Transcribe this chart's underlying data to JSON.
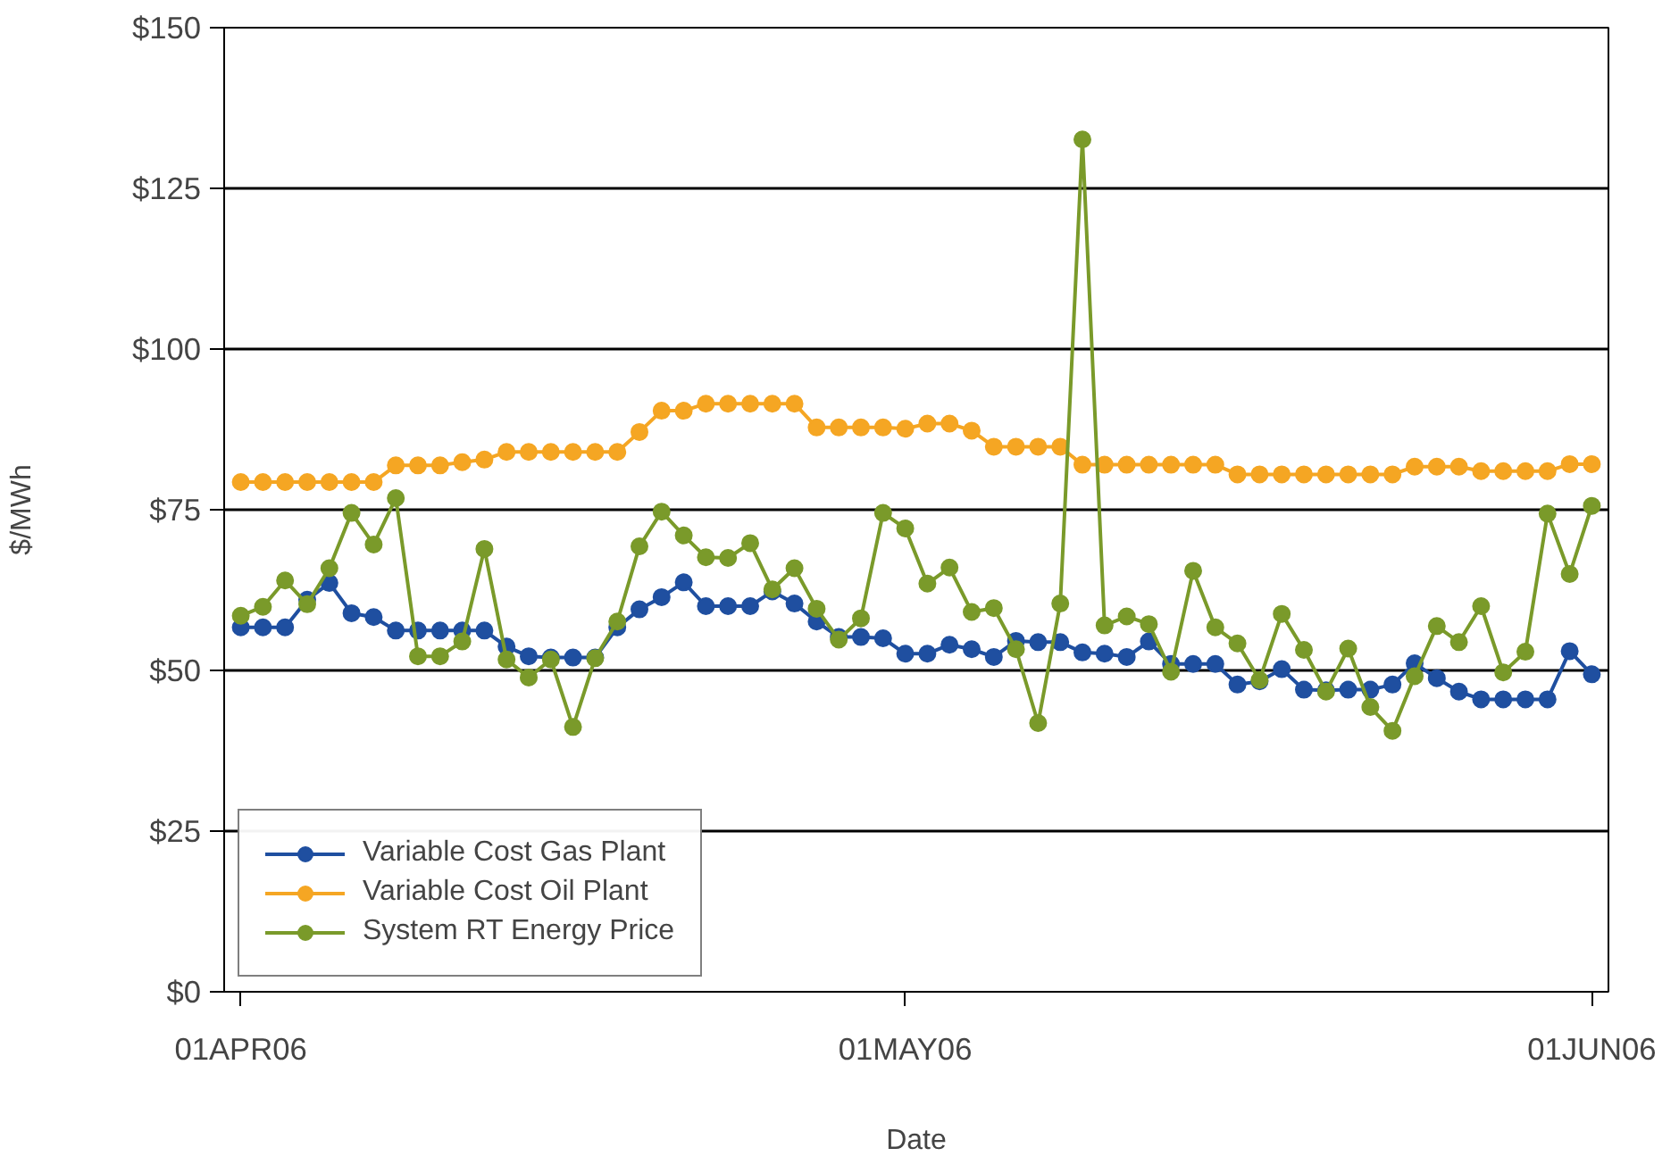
{
  "chart_data": {
    "type": "line",
    "xlabel": "Date",
    "ylabel": "$/MWh",
    "x": [
      "2006-04-01",
      "2006-04-02",
      "2006-04-03",
      "2006-04-04",
      "2006-04-05",
      "2006-04-06",
      "2006-04-07",
      "2006-04-08",
      "2006-04-09",
      "2006-04-10",
      "2006-04-11",
      "2006-04-12",
      "2006-04-13",
      "2006-04-14",
      "2006-04-15",
      "2006-04-16",
      "2006-04-17",
      "2006-04-18",
      "2006-04-19",
      "2006-04-20",
      "2006-04-21",
      "2006-04-22",
      "2006-04-23",
      "2006-04-24",
      "2006-04-25",
      "2006-04-26",
      "2006-04-27",
      "2006-04-28",
      "2006-04-29",
      "2006-04-30",
      "2006-05-01",
      "2006-05-02",
      "2006-05-03",
      "2006-05-04",
      "2006-05-05",
      "2006-05-06",
      "2006-05-07",
      "2006-05-08",
      "2006-05-09",
      "2006-05-10",
      "2006-05-11",
      "2006-05-12",
      "2006-05-13",
      "2006-05-14",
      "2006-05-15",
      "2006-05-16",
      "2006-05-17",
      "2006-05-18",
      "2006-05-19",
      "2006-05-20",
      "2006-05-21",
      "2006-05-22",
      "2006-05-23",
      "2006-05-24",
      "2006-05-25",
      "2006-05-26",
      "2006-05-27",
      "2006-05-28",
      "2006-05-29",
      "2006-05-30",
      "2006-05-31",
      "2006-06-01"
    ],
    "series": [
      {
        "name": "Variable Cost Gas Plant",
        "color": "#1f4fa0",
        "values": [
          56.7,
          56.7,
          56.7,
          61,
          63.6,
          58.9,
          58.3,
          56.2,
          56.2,
          56.2,
          56.2,
          56.2,
          53.7,
          52.2,
          52,
          52,
          52,
          56.7,
          59.5,
          61.4,
          63.7,
          60,
          60,
          60,
          62.3,
          60.4,
          57.6,
          55.2,
          55.2,
          55,
          52.6,
          52.6,
          54,
          53.3,
          52.1,
          54.6,
          54.4,
          54.4,
          52.8,
          52.6,
          52.1,
          54.5,
          51,
          51,
          51,
          47.8,
          48.3,
          50.2,
          47,
          46.9,
          47,
          47,
          47.8,
          51.1,
          48.8,
          46.7,
          45.5,
          45.5,
          45.5,
          45.5,
          53,
          49.4
        ]
      },
      {
        "name": "Variable Cost Oil Plant",
        "color": "#f5a623",
        "values": [
          79.3,
          79.3,
          79.3,
          79.3,
          79.3,
          79.3,
          79.3,
          81.9,
          81.9,
          81.9,
          82.4,
          82.8,
          84,
          84,
          84,
          84,
          84,
          84,
          87.1,
          90.4,
          90.4,
          91.5,
          91.5,
          91.5,
          91.5,
          91.5,
          87.8,
          87.8,
          87.8,
          87.8,
          87.6,
          88.4,
          88.4,
          87.3,
          84.8,
          84.8,
          84.8,
          84.8,
          82,
          82,
          82,
          82,
          82,
          82,
          82,
          80.5,
          80.5,
          80.5,
          80.5,
          80.5,
          80.5,
          80.5,
          80.5,
          81.7,
          81.7,
          81.7,
          81,
          81,
          81,
          81,
          82.1,
          82.1
        ]
      },
      {
        "name": "System RT Energy Price",
        "color": "#7a9a2a",
        "values": [
          58.5,
          59.9,
          64,
          60.3,
          65.9,
          74.5,
          69.6,
          76.8,
          52.2,
          52.2,
          54.5,
          68.9,
          51.7,
          48.9,
          51.7,
          41.2,
          51.9,
          57.6,
          69.3,
          74.7,
          71,
          67.6,
          67.5,
          69.8,
          62.6,
          65.9,
          59.6,
          54.8,
          58.1,
          74.5,
          72.1,
          63.5,
          66,
          59.1,
          59.7,
          53.3,
          41.8,
          60.4,
          132.6,
          57,
          58.4,
          57.2,
          49.8,
          65.5,
          56.7,
          54.2,
          48.5,
          58.8,
          53.2,
          46.7,
          53.4,
          44.3,
          40.6,
          49.1,
          56.9,
          54.4,
          60,
          49.7,
          52.9,
          74.4,
          65,
          75.6
        ]
      }
    ],
    "xlim": [
      "2006-03-31T06:00",
      "2006-06-01T18:00"
    ],
    "xticks": [
      {
        "value": "2006-04-01",
        "label": "01APR06"
      },
      {
        "value": "2006-05-01",
        "label": "01MAY06"
      },
      {
        "value": "2006-06-01",
        "label": "01JUN06"
      }
    ],
    "ylim": [
      0,
      150
    ],
    "yticks": [
      {
        "value": 0,
        "label": "$0"
      },
      {
        "value": 25,
        "label": "$25"
      },
      {
        "value": 50,
        "label": "$50"
      },
      {
        "value": 75,
        "label": "$75"
      },
      {
        "value": 100,
        "label": "$100"
      },
      {
        "value": 125,
        "label": "$125"
      },
      {
        "value": 150,
        "label": "$150"
      }
    ],
    "grid": "y",
    "legend": "bottom left",
    "marker": "circle",
    "line_style": "solid"
  }
}
